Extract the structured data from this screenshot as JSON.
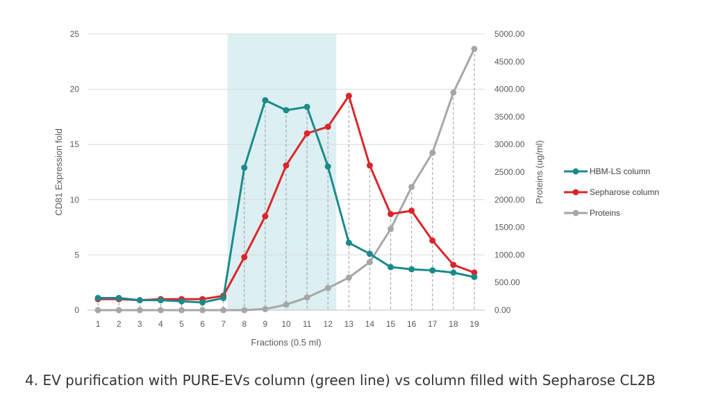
{
  "caption": "4. EV purification with PURE-EVs column (green line) vs column filled with Sepharose CL2B",
  "chart_data": {
    "type": "line",
    "xlabel": "Fractions (0.5 ml)",
    "ylabel": "CD81 Expression fold",
    "y2label": "Proteins (ug/ml)",
    "categories": [
      "1",
      "2",
      "3",
      "4",
      "5",
      "6",
      "7",
      "8",
      "9",
      "10",
      "11",
      "12",
      "13",
      "14",
      "15",
      "16",
      "17",
      "18",
      "19"
    ],
    "ylim": [
      0,
      25
    ],
    "y2lim": [
      0,
      5000
    ],
    "yticks": [
      "0",
      "5",
      "10",
      "15",
      "20",
      "25"
    ],
    "y2ticks": [
      "0.00",
      "500.00",
      "1000.00",
      "1500.00",
      "2000.00",
      "2500.00",
      "3000.00",
      "3500.00",
      "4000.00",
      "4500.00",
      "5000.00"
    ],
    "highlight_range": [
      7.2,
      12.4
    ],
    "highlight_color": "#dceff2",
    "gridlines": "horizontal",
    "legend_position": "right",
    "series": [
      {
        "name": "HBM-LS column",
        "axis": "left",
        "color": "#1a8a8a",
        "values": [
          1.1,
          1.1,
          0.9,
          0.9,
          0.8,
          0.7,
          1.1,
          12.9,
          19.0,
          18.1,
          18.4,
          13.0,
          6.1,
          5.1,
          3.9,
          3.7,
          3.6,
          3.4,
          3.0
        ]
      },
      {
        "name": "Sepharose column",
        "axis": "left",
        "color": "#d9262b",
        "values": [
          1.0,
          1.0,
          0.9,
          1.0,
          1.0,
          1.0,
          1.3,
          4.8,
          8.5,
          13.1,
          16.0,
          16.6,
          19.4,
          13.1,
          8.7,
          9.0,
          6.3,
          4.1,
          3.4
        ]
      },
      {
        "name": "Proteins",
        "axis": "right",
        "color": "#a6a6a6",
        "values": [
          0,
          0,
          0,
          0,
          0,
          0,
          0,
          0,
          20,
          100,
          230,
          400,
          590,
          870,
          1470,
          2230,
          2850,
          3940,
          4730
        ]
      }
    ]
  }
}
